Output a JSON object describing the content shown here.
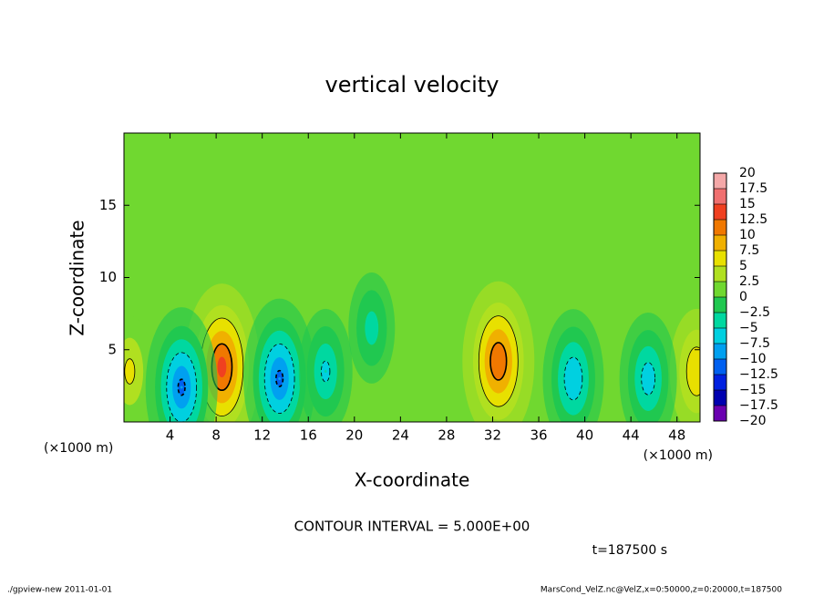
{
  "chart_data": {
    "type": "contour",
    "title": "vertical velocity",
    "x_label": "X-coordinate",
    "y_label": "Z-coordinate",
    "x_unit": "(×1000 m)",
    "y_unit": "(×1000 m)",
    "xlim": [
      0,
      50
    ],
    "ylim": [
      0,
      20
    ],
    "xticks": [
      4,
      8,
      12,
      16,
      20,
      24,
      28,
      32,
      36,
      40,
      44,
      48
    ],
    "yticks": [
      5,
      10,
      15
    ],
    "background_value": 1,
    "features": [
      {
        "x": 8.5,
        "z": 3.8,
        "value": 13
      },
      {
        "x": 32.5,
        "z": 4.2,
        "value": 12
      },
      {
        "x": 0.5,
        "z": 3.5,
        "value": 5
      },
      {
        "x": 49.7,
        "z": 3.5,
        "value": 7
      },
      {
        "x": 5,
        "z": 2.4,
        "value": -10
      },
      {
        "x": 13.5,
        "z": 3,
        "value": -10
      },
      {
        "x": 17.5,
        "z": 3.5,
        "value": -5
      },
      {
        "x": 39,
        "z": 3,
        "value": -7
      },
      {
        "x": 45.5,
        "z": 3,
        "value": -6
      },
      {
        "x": 21.5,
        "z": 6.5,
        "value": -3
      }
    ],
    "colorbar": {
      "levels": [
        {
          "value": -20,
          "label": "−20"
        },
        {
          "value": -17.5,
          "label": "−17.5"
        },
        {
          "value": -15,
          "label": "−15"
        },
        {
          "value": -12.5,
          "label": "−12.5"
        },
        {
          "value": -10,
          "label": "−10"
        },
        {
          "value": -7.5,
          "label": "−7.5"
        },
        {
          "value": -5,
          "label": "−5"
        },
        {
          "value": -2.5,
          "label": "−2.5"
        },
        0,
        2.5,
        5,
        7.5,
        10,
        12.5,
        15,
        17.5,
        20
      ],
      "colors": [
        "#6a00b0",
        "#0000b0",
        "#0020e0",
        "#0060f0",
        "#00a0f0",
        "#00d0e0",
        "#00d8a0",
        "#20c850",
        "#70d830",
        "#b0e020",
        "#e8e000",
        "#f0b000",
        "#f07800",
        "#f04020",
        "#f07070",
        "#f4a8a8"
      ]
    },
    "contour_interval_label": "CONTOUR INTERVAL = 5.000E+00",
    "time_label": "t=187500 s"
  },
  "footer": {
    "left": "./gpview-new  2011-01-01",
    "right": "MarsCond_VelZ.nc@VelZ,x=0:50000,z=0:20000,t=187500"
  }
}
